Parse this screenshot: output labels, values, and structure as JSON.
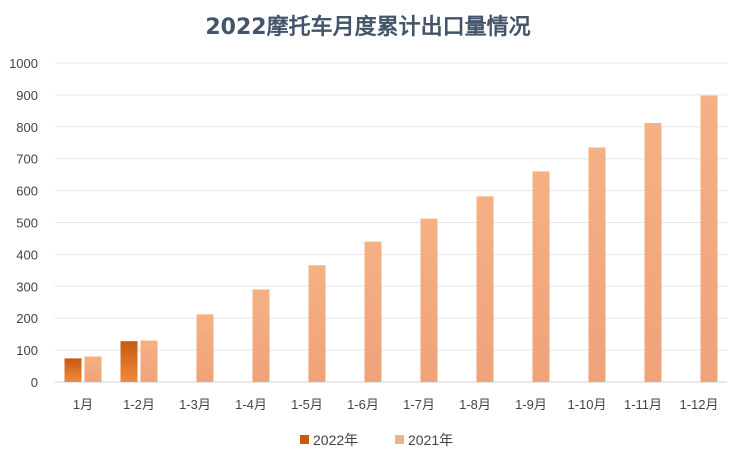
{
  "chart_data": {
    "type": "bar",
    "title": "2022摩托车月度累计出口量情况",
    "categories": [
      "1月",
      "1-2月",
      "1-3月",
      "1-4月",
      "1-5月",
      "1-6月",
      "1-7月",
      "1-8月",
      "1-9月",
      "1-10月",
      "1-11月",
      "1-12月"
    ],
    "series": [
      {
        "name": "2022年",
        "values": [
          74,
          128,
          null,
          null,
          null,
          null,
          null,
          null,
          null,
          null,
          null,
          null
        ],
        "color": "#c55a11"
      },
      {
        "name": "2021年",
        "values": [
          80,
          130,
          212,
          290,
          366,
          440,
          512,
          582,
          660,
          735,
          812,
          898
        ],
        "color": "#f4b183"
      }
    ],
    "ylim": [
      0,
      1000
    ],
    "yticks": [
      0,
      100,
      200,
      300,
      400,
      500,
      600,
      700,
      800,
      900,
      1000
    ],
    "grid": true,
    "legend": "bottom-center"
  }
}
